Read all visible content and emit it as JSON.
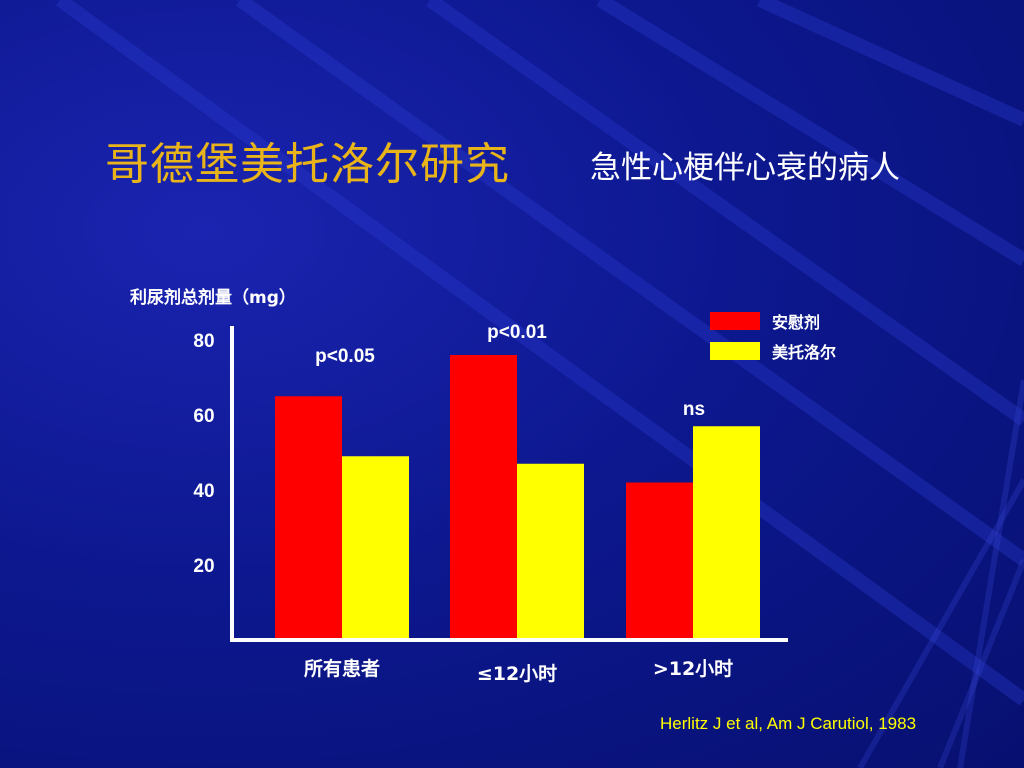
{
  "header": {
    "title": "哥德堡美托洛尔研究",
    "subtitle": "急性心梗伴心衰的病人"
  },
  "citation": "Herlitz J et al, Am J Carutiol, 1983",
  "colors": {
    "background": "#0d1890",
    "title": "#e8b41a",
    "placebo": "#ff0000",
    "metoprolol": "#ffff00",
    "axis": "#ffffff",
    "citation": "#ffff00"
  },
  "chart_data": {
    "type": "bar",
    "title": "",
    "ylabel": "利尿剂总剂量（mg）",
    "xlabel": "",
    "categories": [
      "所有患者",
      "≤12小时",
      ">12小时"
    ],
    "series": [
      {
        "name": "安慰剂",
        "color": "#ff0000",
        "values": [
          65,
          76,
          42
        ]
      },
      {
        "name": "美托洛尔",
        "color": "#ffff00",
        "values": [
          49,
          47,
          57
        ]
      }
    ],
    "annotations": [
      "p<0.05",
      "p<0.01",
      "ns"
    ],
    "yticks": [
      80,
      60,
      40,
      20
    ],
    "ylim": [
      0,
      84
    ],
    "grid": false,
    "legend_position": "top-right"
  }
}
